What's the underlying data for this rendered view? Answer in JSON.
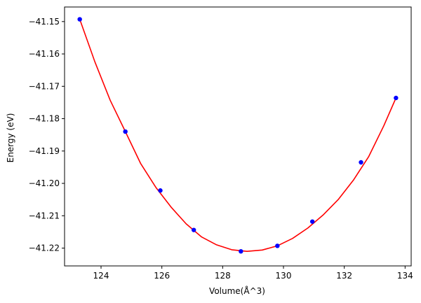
{
  "chart_data": {
    "type": "scatter",
    "title": "",
    "xlabel": "Volume(Å^3)",
    "ylabel": "Energy (eV)",
    "xlim": [
      122.8,
      134.2
    ],
    "ylim": [
      -41.2255,
      -41.1455
    ],
    "x_ticks": [
      124,
      126,
      128,
      130,
      132,
      134
    ],
    "x_tick_labels": [
      "124",
      "126",
      "128",
      "130",
      "132",
      "134"
    ],
    "y_ticks": [
      -41.15,
      -41.16,
      -41.17,
      -41.18,
      -41.19,
      -41.2,
      -41.21,
      -41.22
    ],
    "y_tick_labels": [
      "−41.15",
      "−41.16",
      "−41.17",
      "−41.18",
      "−41.19",
      "−41.20",
      "−41.21",
      "−41.22"
    ],
    "grid": false,
    "series": [
      {
        "kind": "points",
        "color": "#0000ff",
        "x": [
          123.3,
          124.8,
          125.95,
          127.05,
          128.6,
          129.8,
          130.95,
          132.55,
          133.7
        ],
        "y": [
          -41.1493,
          -41.184,
          -41.2022,
          -41.2144,
          -41.221,
          -41.2193,
          -41.2118,
          -41.1935,
          -41.1736
        ]
      },
      {
        "kind": "fit-curve",
        "color": "#ff0000",
        "x": [
          123.3,
          123.8,
          124.3,
          124.8,
          125.3,
          125.8,
          126.3,
          126.8,
          127.3,
          127.8,
          128.3,
          128.8,
          129.3,
          129.8,
          130.3,
          130.8,
          131.3,
          131.8,
          132.3,
          132.8,
          133.3,
          133.7
        ],
        "y": [
          -41.1493,
          -41.1625,
          -41.1743,
          -41.184,
          -41.1938,
          -41.2012,
          -41.2073,
          -41.2125,
          -41.2165,
          -41.219,
          -41.2205,
          -41.221,
          -41.2206,
          -41.2193,
          -41.217,
          -41.2138,
          -41.2098,
          -41.205,
          -41.199,
          -41.1918,
          -41.1822,
          -41.1736
        ]
      }
    ]
  }
}
